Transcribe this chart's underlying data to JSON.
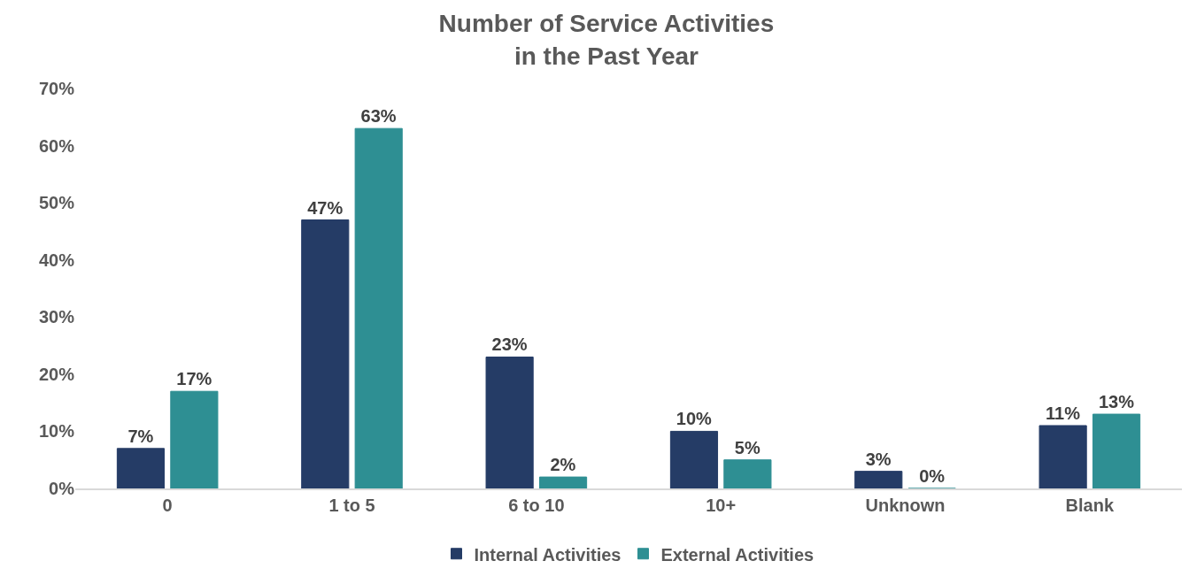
{
  "chart_data": {
    "type": "bar",
    "title": "Number of Service Activities\nin the Past Year",
    "categories": [
      "0",
      "1 to 5",
      "6 to 10",
      "10+",
      "Unknown",
      "Blank"
    ],
    "series": [
      {
        "name": "Internal Activities",
        "color": "#253c66",
        "values": [
          7,
          47,
          23,
          10,
          3,
          11
        ],
        "value_labels": [
          "7%",
          "47%",
          "23%",
          "10%",
          "3%",
          "11%"
        ]
      },
      {
        "name": "External Activities",
        "color": "#2e8f93",
        "values": [
          17,
          63,
          2,
          5,
          0,
          13
        ],
        "value_labels": [
          "17%",
          "63%",
          "2%",
          "5%",
          "0%",
          "13%"
        ]
      }
    ],
    "ylim": [
      0,
      70
    ],
    "yticks": [
      {
        "value": 0,
        "label": "0%"
      },
      {
        "value": 10,
        "label": "10%"
      },
      {
        "value": 20,
        "label": "20%"
      },
      {
        "value": 30,
        "label": "30%"
      },
      {
        "value": 40,
        "label": "40%"
      },
      {
        "value": 50,
        "label": "50%"
      },
      {
        "value": 60,
        "label": "60%"
      },
      {
        "value": 70,
        "label": "70%"
      }
    ],
    "legend": "bottom"
  }
}
